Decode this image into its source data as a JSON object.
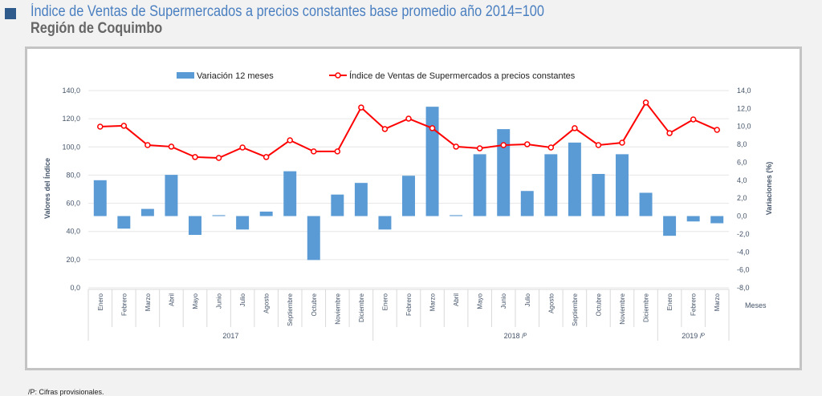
{
  "header": {
    "title": "Índice de Ventas de Supermercados a precios constantes base promedio año 2014=100",
    "subtitle": "Región de Coquimbo"
  },
  "footnote": "/P: Cifras provisionales.",
  "chart_data": {
    "type": "bar+line",
    "legend": {
      "placement": "top",
      "items": [
        "Variación 12 meses",
        "Índice de Ventas de Supermercados a precios constantes"
      ]
    },
    "colors": {
      "bar": "#5b9bd5",
      "line": "#ff0000",
      "axis_text": "#44546a",
      "grid": "#e6e6e6"
    },
    "categories": [
      "Enero",
      "Febrero",
      "Marzo",
      "Abril",
      "Mayo",
      "Junio",
      "Julio",
      "Agosto",
      "Septiembre",
      "Octubre",
      "Noviembre",
      "Diciembre",
      "Enero",
      "Febrero",
      "Marzo",
      "Abril",
      "Mayo",
      "Junio",
      "Julio",
      "Agosto",
      "Septiembre",
      "Octubre",
      "Noviembre",
      "Diciembre",
      "Enero",
      "Febrero",
      "Marzo"
    ],
    "year_groups": [
      {
        "label": "2017",
        "start": 0,
        "count": 12
      },
      {
        "label": "2018 /ᴾ",
        "start": 12,
        "count": 12
      },
      {
        "label": "2019 /ᴾ",
        "start": 24,
        "count": 3
      }
    ],
    "series": [
      {
        "name": "Variación 12 meses",
        "type": "bar",
        "axis": "right",
        "values": [
          4.0,
          -1.4,
          0.8,
          4.6,
          -2.1,
          0.1,
          -1.5,
          0.5,
          5.0,
          -4.9,
          2.4,
          3.7,
          -1.5,
          4.5,
          12.2,
          0.1,
          6.9,
          9.7,
          2.8,
          6.9,
          8.2,
          4.7,
          6.9,
          2.6,
          -2.2,
          -0.6,
          -0.8
        ]
      },
      {
        "name": "Índice de Ventas de Supermercados a precios constantes",
        "type": "line",
        "axis": "left",
        "values": [
          114.4,
          115.0,
          101.3,
          100.2,
          92.8,
          92.2,
          99.6,
          92.8,
          104.7,
          96.8,
          96.8,
          128.0,
          112.7,
          120.1,
          113.3,
          100.2,
          99.0,
          101.3,
          101.9,
          99.6,
          113.3,
          101.3,
          103.0,
          131.5,
          109.8,
          119.5,
          112.1
        ]
      }
    ],
    "left_axis": {
      "label": "Valores del Índice",
      "ylim": [
        0,
        140
      ],
      "ticks": [
        "0,0",
        "20,0",
        "40,0",
        "60,0",
        "80,0",
        "100,0",
        "120,0",
        "140,0"
      ],
      "tick_values": [
        0,
        20,
        40,
        60,
        80,
        100,
        120,
        140
      ]
    },
    "right_axis": {
      "label": "Variaciones (%)",
      "ylim": [
        -8,
        14
      ],
      "ticks": [
        "-8,0",
        "-6,0",
        "-4,0",
        "-2,0",
        "0,0",
        "2,0",
        "4,0",
        "6,0",
        "8,0",
        "10,0",
        "12,0",
        "14,0"
      ],
      "tick_values": [
        -8,
        -6,
        -4,
        -2,
        0,
        2,
        4,
        6,
        8,
        10,
        12,
        14
      ]
    },
    "xlabel": "Meses",
    "grid": true
  }
}
